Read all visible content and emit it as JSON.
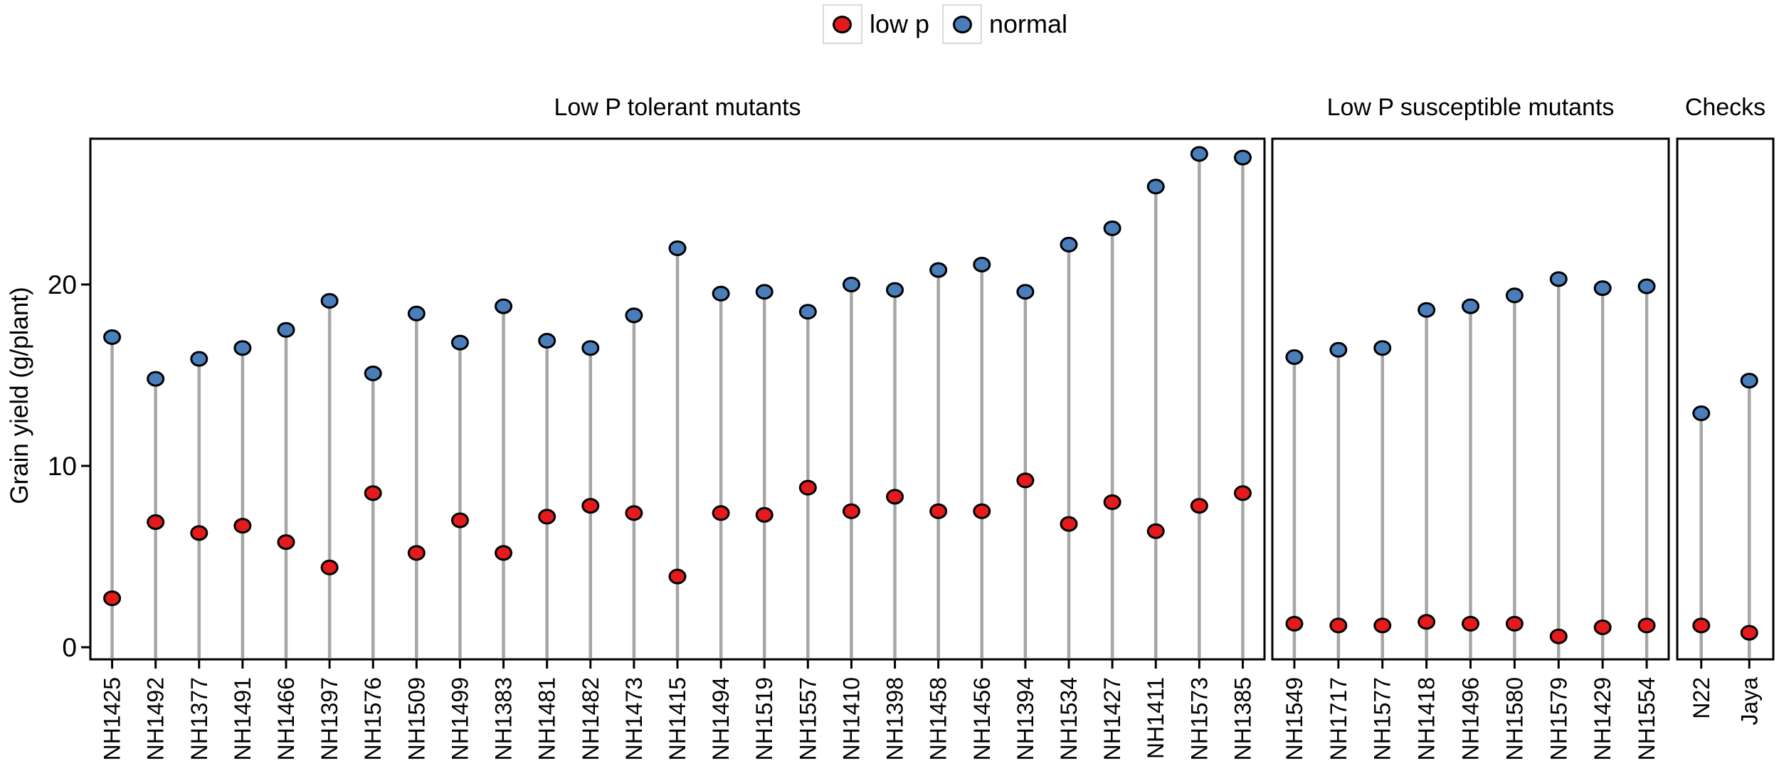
{
  "figure": {
    "y_axis_title": "Grain yield (g/plant)",
    "colors": {
      "low_p": "#e41a1c",
      "normal": "#4a7ebb",
      "stem": "#a6a6a6",
      "panel_border": "#000000",
      "legend_box_border": "#d9d9d9"
    }
  },
  "legend": [
    {
      "label": "low p",
      "color": "#e41a1c"
    },
    {
      "label": "normal",
      "color": "#4a7ebb"
    }
  ],
  "chart_data": {
    "type": "scatter",
    "subtype": "dumbbell-lollipop",
    "title": "",
    "ylabel": "Grain yield (g/plant)",
    "ylim": [
      0,
      28.5
    ],
    "yticks": [
      0,
      10,
      20
    ],
    "grid": false,
    "legend_position": "top-center",
    "legend": [
      "low p",
      "normal"
    ],
    "panels": [
      {
        "title": "Low P tolerant mutants",
        "categories": [
          "NH1425",
          "NH1492",
          "NH1377",
          "NH1491",
          "NH1466",
          "NH1397",
          "NH1576",
          "NH1509",
          "NH1499",
          "NH1383",
          "NH1481",
          "NH1482",
          "NH1473",
          "NH1415",
          "NH1494",
          "NH1519",
          "NH1557",
          "NH1410",
          "NH1398",
          "NH1458",
          "NH1456",
          "NH1394",
          "NH1534",
          "NH1427",
          "NH1411",
          "NH1573",
          "NH1385"
        ],
        "series": [
          {
            "name": "normal",
            "values": [
              17.1,
              14.8,
              15.9,
              16.5,
              17.5,
              19.1,
              15.1,
              18.4,
              16.8,
              18.8,
              16.9,
              16.5,
              18.3,
              22.0,
              19.5,
              19.6,
              18.5,
              20.0,
              19.7,
              20.8,
              21.1,
              19.6,
              22.2,
              23.1,
              25.4,
              27.2,
              27.0
            ]
          },
          {
            "name": "low p",
            "values": [
              2.7,
              6.9,
              6.3,
              6.7,
              5.8,
              4.4,
              8.5,
              5.2,
              7.0,
              5.2,
              7.2,
              7.8,
              7.4,
              3.9,
              7.4,
              7.3,
              8.8,
              7.5,
              8.3,
              7.5,
              7.5,
              9.2,
              6.8,
              8.0,
              6.4,
              7.8,
              8.5
            ]
          }
        ]
      },
      {
        "title": "Low P susceptible mutants",
        "categories": [
          "NH1549",
          "NH1717",
          "NH1577",
          "NH1418",
          "NH1496",
          "NH1580",
          "NH1579",
          "NH1429",
          "NH1554"
        ],
        "series": [
          {
            "name": "normal",
            "values": [
              16.0,
              16.4,
              16.5,
              18.6,
              18.8,
              19.4,
              20.3,
              19.8,
              19.9
            ]
          },
          {
            "name": "low p",
            "values": [
              1.3,
              1.2,
              1.2,
              1.4,
              1.3,
              1.3,
              0.6,
              1.1,
              1.2
            ]
          }
        ]
      },
      {
        "title": "Checks",
        "categories": [
          "N22",
          "Jaya"
        ],
        "series": [
          {
            "name": "normal",
            "values": [
              12.9,
              14.7
            ]
          },
          {
            "name": "low p",
            "values": [
              1.2,
              0.8
            ]
          }
        ]
      }
    ]
  }
}
